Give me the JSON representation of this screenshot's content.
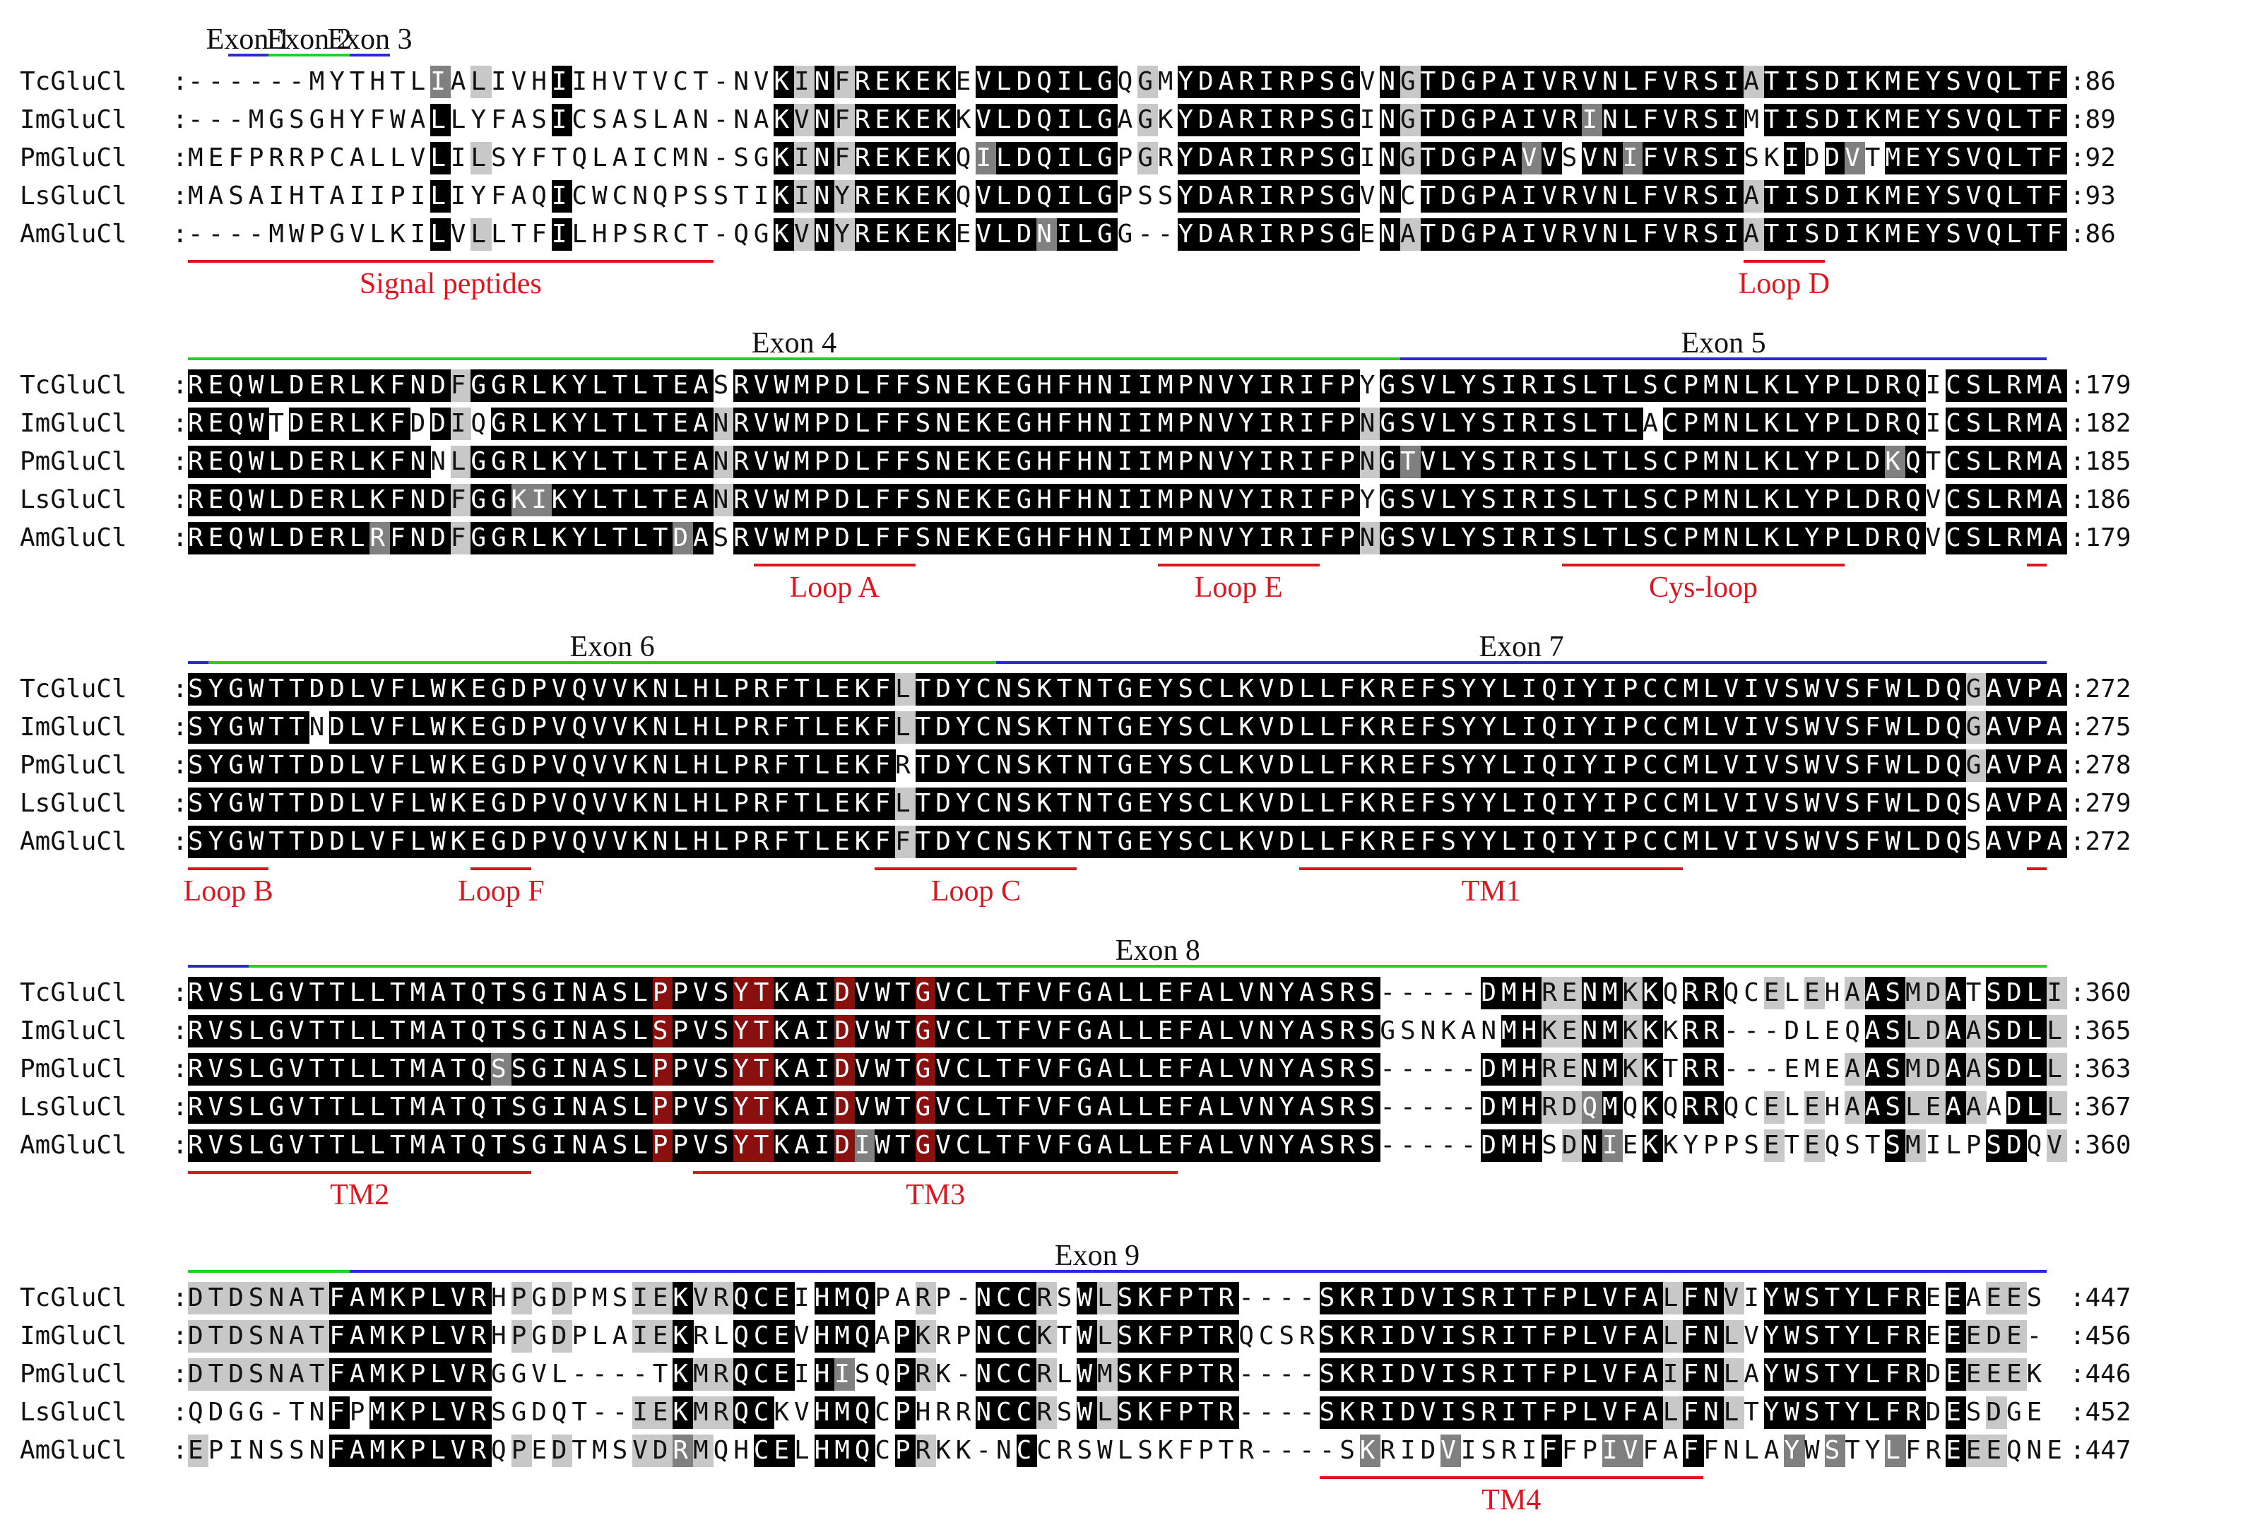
{
  "alignment": {
    "colors": {
      "identical": "#000000",
      "identical_text": "#ffffff",
      "similar": "#808080",
      "similar_text": "#ffffff",
      "weak": "#c8c8c8",
      "weak_text": "#000000",
      "none_text": "#111111",
      "highlight": "#8a1010",
      "exon_green": "#22d022",
      "exon_blue": "#2a2ad8",
      "region_red": "#e0141e"
    },
    "blocks": [
      {
        "rows": [
          {
            "name": "TcGluCl",
            "seq": "------MYTHTLIALIVHIIHVTVCT-NVKINFREKEKEVLDQILGQGMYDARIRPSGVNGTDGPAIVRVNLFVRSIATISDIKMEYSVQLTF",
            "end": "86"
          },
          {
            "name": "ImGluCl",
            "seq": "---MGSGHYFWALLYFASICSASLAN-NAKVNFREKEKKVLDQILGAGKYDARIRPSGINGTDGPAIVRINLFVRSIMTISDIKMEYSVQLTF",
            "end": "89"
          },
          {
            "name": "PmGluCl",
            "seq": "MEFPRRPCALLVLILSYFTQLAICMN-SGKINFREKEKQILDQILGPGRYDARIRPSGINGTDGPAVVSVNIFVRSISKIDDVTMEYSVQLTF",
            "end": "92"
          },
          {
            "name": "LsGluCl",
            "seq": "MASAIHTAIIPILIYFAQICWCNQPSSTIKINYREKEKQVLDQILGPSSYDARIRPSGVNCTDGPAIVRVNLFVRSIATISDIKMEYSVQLTF",
            "end": "93"
          },
          {
            "name": "AmGluCl",
            "seq": "----MWPGVLKILVLLTFILHPSRCT-QGKVNYREKEKEVLDNILGG--YDARIRPSGENATDGPAIVRVNLFVRSIATISDIKMEYSVQLTF",
            "end": "86"
          }
        ],
        "exons": [
          {
            "label": "Exon 1",
            "color": "blue",
            "start": 2,
            "stop": 4,
            "label_at": 3
          },
          {
            "label": "Exon 2",
            "color": "green",
            "start": 4,
            "stop": 8,
            "label_at": 6
          },
          {
            "label": "Exon 3",
            "color": "blue",
            "start": 8,
            "stop": 10,
            "label_at": 9
          }
        ],
        "regions": [
          {
            "label": "Signal peptides",
            "start": 0,
            "stop": 26
          },
          {
            "label": "Loop D",
            "start": 77,
            "stop": 81
          }
        ]
      },
      {
        "rows": [
          {
            "name": "TcGluCl",
            "seq": "REQWLDERLKFNDFGGRLKYLTLTEASRVWMPDLFFSNEKEGHFHNIIMPNVYIRIFPYGSVLYSIRISLTLSCPMNLKLYPLDRQICSLRMA",
            "end": "179"
          },
          {
            "name": "ImGluCl",
            "seq": "REQWTDERLKFDDIQGRLKYLTLTEANRVWMPDLFFSNEKEGHFHNIIMPNVYIRIFPNGSVLYSIRISLTLACPMNLKLYPLDRQICSLRMA",
            "end": "182"
          },
          {
            "name": "PmGluCl",
            "seq": "REQWLDERLKFNNLGGRLKYLTLTEANRVWMPDLFFSNEKEGHFHNIIMPNVYIRIFPNGTVLYSIRISLTLSCPMNLKLYPLDKQTCSLRMA",
            "end": "185"
          },
          {
            "name": "LsGluCl",
            "seq": "REQWLDERLKFNDFGGKIKYLTLTEANRVWMPDLFFSNEKEGHFHNIIMPNVYIRIFPYGSVLYSIRISLTLSCPMNLKLYPLDRQVCSLRMA",
            "end": "186"
          },
          {
            "name": "AmGluCl",
            "seq": "REQWLDERLRFNDFGGRLKYLTLTDASRVWMPDLFFSNEKEGHFHNIIMPNVYIRIFPNGSVLYSIRISLTLSCPMNLKLYPLDRQVCSLRMA",
            "end": "179"
          }
        ],
        "exons": [
          {
            "label": "Exon 4",
            "color": "green",
            "start": 0,
            "stop": 60,
            "label_at": 30
          },
          {
            "label": "Exon 5",
            "color": "blue",
            "start": 60,
            "stop": 92,
            "label_at": 76
          }
        ],
        "regions": [
          {
            "label": "Loop A",
            "start": 28,
            "stop": 36
          },
          {
            "label": "Loop E",
            "start": 48,
            "stop": 56
          },
          {
            "label": "Cys-loop",
            "start": 68,
            "stop": 82
          },
          {
            "label": "",
            "start": 91,
            "stop": 92
          }
        ]
      },
      {
        "rows": [
          {
            "name": "TcGluCl",
            "seq": "SYGWTTDDLVFLWKEGDPVQVVKNLHLPRFTLEKFLTDYCNSKTNTGEYSCLKVDLLFKREFSYYLIQIYIPCCMLVIVSWVSFWLDQGAVPA",
            "end": "272"
          },
          {
            "name": "ImGluCl",
            "seq": "SYGWTTNDLVFLWKEGDPVQVVKNLHLPRFTLEKFLTDYCNSKTNTGEYSCLKVDLLFKREFSYYLIQIYIPCCMLVIVSWVSFWLDQGAVPA",
            "end": "275"
          },
          {
            "name": "PmGluCl",
            "seq": "SYGWTTDDLVFLWKEGDPVQVVKNLHLPRFTLEKFRTDYCNSKTNTGEYSCLKVDLLFKREFSYYLIQIYIPCCMLVIVSWVSFWLDQGAVPA",
            "end": "278"
          },
          {
            "name": "LsGluCl",
            "seq": "SYGWTTDDLVFLWKEGDPVQVVKNLHLPRFTLEKFLTDYCNSKTNTGEYSCLKVDLLFKREFSYYLIQIYIPCCMLVIVSWVSFWLDQSAVPA",
            "end": "279"
          },
          {
            "name": "AmGluCl",
            "seq": "SYGWTTDDLVFLWKEGDPVQVVKNLHLPRFTLEKFFTDYCNSKTNTGEYSCLKVDLLFKREFSYYLIQIYIPCCMLVIVSWVSFWLDQSAVPA",
            "end": "272"
          }
        ],
        "exons": [
          {
            "label": "",
            "color": "blue",
            "start": 0,
            "stop": 1,
            "label_at": 0
          },
          {
            "label": "Exon 6",
            "color": "green",
            "start": 1,
            "stop": 40,
            "label_at": 21
          },
          {
            "label": "Exon 7",
            "color": "blue",
            "start": 40,
            "stop": 92,
            "label_at": 66
          }
        ],
        "regions": [
          {
            "label": "Loop B",
            "start": 0,
            "stop": 4
          },
          {
            "label": "Loop F",
            "start": 14,
            "stop": 17
          },
          {
            "label": "Loop C",
            "start": 34,
            "stop": 44
          },
          {
            "label": "TM1",
            "start": 55,
            "stop": 74
          },
          {
            "label": "",
            "start": 91,
            "stop": 92
          }
        ]
      },
      {
        "rows": [
          {
            "name": "TcGluCl",
            "seq": "RVSLGVTTLLTMATQTSGINASLPPVSYTKAIDVWTGVCLTFVFGALLEFALVNYASRS-----DMHRENMKKQRRQCELEHAASMDATSDLI",
            "end": "360"
          },
          {
            "name": "ImGluCl",
            "seq": "RVSLGVTTLLTMATQTSGINASLSPVSYTKAIDVWTGVCLTFVFGALLEFALVNYASRSGSNKANMHKENMKKKRR---DLEQASLDAASDLL",
            "end": "365"
          },
          {
            "name": "PmGluCl",
            "seq": "RVSLGVTTLLTMATQSSGINASLPPVSYTKAIDVWTGVCLTFVFGALLEFALVNYASRS-----DMHRENMKKTRR---EMEAASMDAASDLL",
            "end": "363"
          },
          {
            "name": "LsGluCl",
            "seq": "RVSLGVTTLLTMATQTSGINASLPPVSYTKAIDVWTGVCLTFVFGALLEFALVNYASRS-----DMHRDQMQKQRRQCELEHAASLEAAADLL",
            "end": "367"
          },
          {
            "name": "AmGluCl",
            "seq": "RVSLGVTTLLTMATQTSGINASLPPVSYTKAIDIWTGVCLTFVFGALLEFALVNYASRS-----DMHSDNIEKKYPPSETEQSTSMILPSDQV",
            "end": "360"
          }
        ],
        "exons": [
          {
            "label": "",
            "color": "blue",
            "start": 0,
            "stop": 3,
            "label_at": 0
          },
          {
            "label": "Exon 8",
            "color": "green",
            "start": 3,
            "stop": 92,
            "label_at": 48
          }
        ],
        "regions": [
          {
            "label": "TM2",
            "start": 0,
            "stop": 17
          },
          {
            "label": "TM3",
            "start": 25,
            "stop": 49
          }
        ],
        "marks": [
          23,
          27,
          28,
          32,
          36
        ]
      },
      {
        "rows": [
          {
            "name": "TcGluCl",
            "seq": "DTDSNATFAMKPLVRHPGDPMSIEKVRQCEIHMQPARP-NCCRSWLSKFPTR----SKRIDVISRITFPLVFALFNVIYWSTYLFREEAEES",
            "end": "447"
          },
          {
            "name": "ImGluCl",
            "seq": "DTDSNATFAMKPLVRHPGDPLAIEKRLQCEVHMQAPKRPNCCKTWLSKFPTRQCSRSKRIDVISRITFPLVFALFNLVYWSTYLFREEEDE-",
            "end": "456"
          },
          {
            "name": "PmGluCl",
            "seq": "DTDSNATFAMKPLVRGGVL----TKMRQCEIHISQPRK-NCCRLWMSKFPTR----SKRIDVISRITFPLVFAIFNLAYWSTYLFRDEEEEK",
            "end": "446"
          },
          {
            "name": "LsGluCl",
            "seq": "QDGG-TNFPMKPLVRSGDQT--IEKMRQCKVHMQCPHRRNCCRSWLSKFPTR----SKRIDVISRITFPLVFALFNLTYWSTYLFRDESDGE",
            "end": "452"
          },
          {
            "name": "AmGluCl",
            "seq": "EPINSSNFAMKPLVRQPEDTMSVDRMQHCELHMQCPRKK-NCCRSWLSKFPTR----SKRIDVISRIFFPIVFAFFNLAYWSTYLFREEEQNE",
            "end": "447"
          }
        ],
        "exons": [
          {
            "label": "",
            "color": "green",
            "start": 0,
            "stop": 8,
            "label_at": 0
          },
          {
            "label": "Exon 9",
            "color": "blue",
            "start": 8,
            "stop": 92,
            "label_at": 45
          }
        ],
        "regions": [
          {
            "label": "TM4",
            "start": 56,
            "stop": 75
          }
        ]
      }
    ]
  }
}
